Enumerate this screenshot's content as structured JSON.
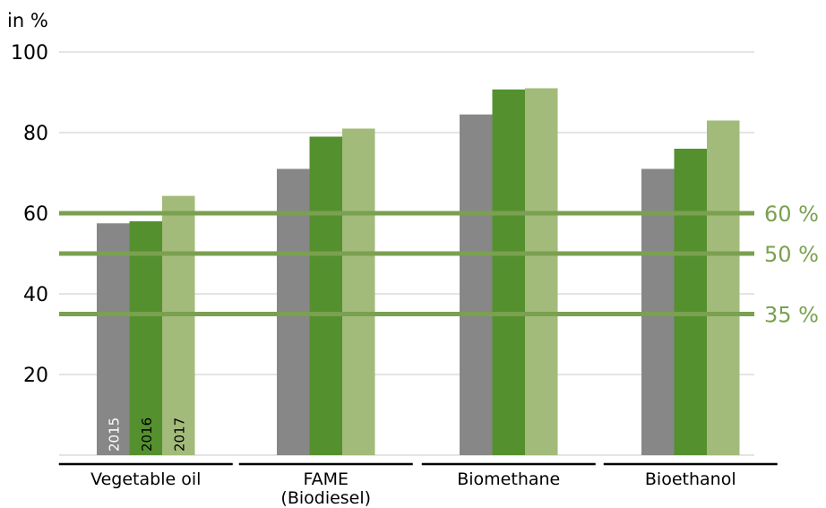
{
  "chart_data": {
    "type": "bar",
    "ylabel": "in %",
    "ylim": [
      0,
      100
    ],
    "yticks": [
      20,
      40,
      60,
      80,
      100
    ],
    "grid": true,
    "categories": [
      "Vegetable oil",
      "FAME\n(Biodiesel)",
      "Biomethane",
      "Bioethanol"
    ],
    "series": [
      {
        "name": "2015",
        "color": "#878787",
        "label_color": "#ffffff",
        "values": [
          57.5,
          71,
          84.5,
          71
        ]
      },
      {
        "name": "2016",
        "color": "#55902f",
        "label_color": "#000000",
        "values": [
          58,
          79,
          90.7,
          76
        ]
      },
      {
        "name": "2017",
        "color": "#a2bb7a",
        "label_color": "#000000",
        "values": [
          64.3,
          81,
          91,
          83
        ]
      }
    ],
    "thresholds": [
      {
        "value": 60,
        "label": "60 %"
      },
      {
        "value": 50,
        "label": "50 %"
      },
      {
        "value": 35,
        "label": "35 %"
      }
    ],
    "threshold_color": "#7aa050",
    "gridline_color": "#c8c8c8",
    "axis_line_color": "#000000"
  }
}
